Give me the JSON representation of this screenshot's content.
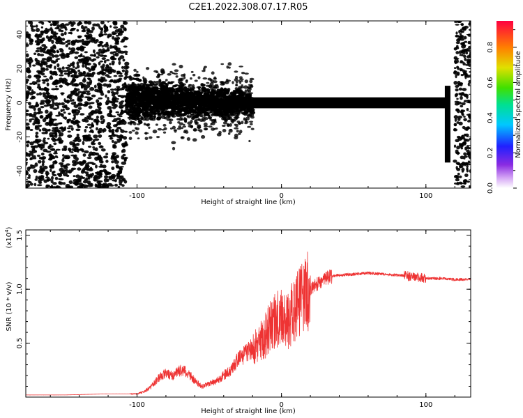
{
  "title": "C2E1.2022.308.07.17.R05",
  "chart_data": [
    {
      "type": "heatmap",
      "xlabel": "Height of straight line (km)",
      "ylabel": "Frequency (Hz)",
      "xlim": [
        -177,
        131
      ],
      "ylim": [
        -50,
        48
      ],
      "xticks": [
        "-100",
        "0",
        "100"
      ],
      "yticks": [
        "-40",
        "-20",
        "0",
        "20",
        "40"
      ],
      "colorbar": {
        "label": "Normalized spectral amplitude",
        "range": [
          0,
          0.95
        ],
        "ticks": [
          "0.0",
          "0.2",
          "0.4",
          "0.6",
          "0.8"
        ]
      },
      "features": {
        "noise_region_left_km": [
          -177,
          -107
        ],
        "noise_region_right_km": [
          120,
          131
        ],
        "signal_onset_km": -107,
        "signal_center_freq_hz": 0,
        "wide_band_region_km": [
          -107,
          -20
        ],
        "narrow_band_region_km": [
          -20,
          115
        ],
        "vertical_feature_km": 115
      }
    },
    {
      "type": "line",
      "xlabel": "Height of straight line (km)",
      "ylabel": "SNR (10 * v/v)",
      "scale_label": "(x10",
      "scale_exponent": "4",
      "xlim": [
        -177,
        131
      ],
      "ylim": [
        0,
        1.55
      ],
      "xticks": [
        "-100",
        "0",
        "100"
      ],
      "yticks": [
        "0.5",
        "1.0",
        "1.5"
      ],
      "color": "#ee3333",
      "series": [
        {
          "x": [
            -177,
            -150,
            -120,
            -100,
            -95,
            -90,
            -85,
            -80,
            -75,
            -70,
            -65,
            -60,
            -55,
            -50,
            -45,
            -40,
            -35,
            -30,
            -25,
            -20,
            -15,
            -10,
            -5,
            0,
            5,
            10,
            15,
            20,
            25,
            30,
            35,
            40,
            50,
            60,
            70,
            80,
            90,
            95,
            100,
            110,
            120,
            131
          ],
          "y": [
            0.02,
            0.02,
            0.03,
            0.03,
            0.05,
            0.1,
            0.18,
            0.22,
            0.2,
            0.25,
            0.23,
            0.15,
            0.1,
            0.12,
            0.15,
            0.2,
            0.25,
            0.35,
            0.4,
            0.45,
            0.5,
            0.6,
            0.7,
            0.75,
            0.7,
            0.85,
            0.95,
            1.0,
            1.05,
            1.1,
            1.12,
            1.13,
            1.14,
            1.15,
            1.14,
            1.13,
            1.12,
            1.11,
            1.1,
            1.1,
            1.09,
            1.09
          ]
        }
      ]
    }
  ]
}
